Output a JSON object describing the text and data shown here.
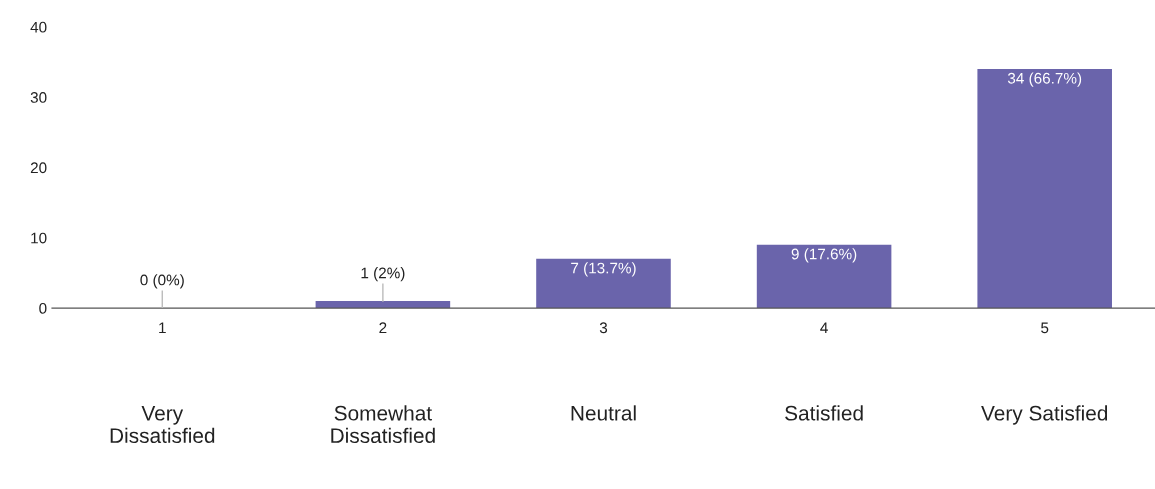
{
  "chart_data": {
    "type": "bar",
    "categories": [
      "1",
      "2",
      "3",
      "4",
      "5"
    ],
    "values": [
      0,
      1,
      7,
      9,
      34
    ],
    "value_labels": [
      "0 (0%)",
      "1 (2%)",
      "7 (13.7%)",
      "9 (17.6%)",
      "34 (66.7%)"
    ],
    "color": "#6a64ab",
    "ylim": [
      0,
      40
    ],
    "yticks": [
      0,
      10,
      20,
      30,
      40
    ],
    "grid": false,
    "annotations": [
      "Very\nDissatisfied",
      "Somewhat\nDissatisfied",
      "Neutral",
      "Satisfied",
      "Very Satisfied"
    ]
  }
}
